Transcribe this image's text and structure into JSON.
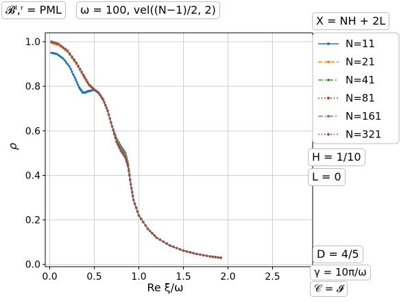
{
  "annotations": {
    "bc": "𝓑ˡ,ʳ = PML",
    "omega": "ω = 100, vel((N−1)/2, 2)",
    "X": "X = NH + 2L",
    "H": "H = 1/10",
    "L": "L = 0",
    "D": "D = 4/5",
    "gamma": "γ = 10π/ω",
    "C": "𝒞 = 𝓘"
  },
  "chart_data": {
    "type": "line",
    "xlabel": "Re ξ/ω",
    "ylabel": "ρ",
    "xlim": [
      -0.05,
      2.95
    ],
    "ylim": [
      -0.01,
      1.04
    ],
    "xticks": [
      "0.0",
      "0.5",
      "1.0",
      "1.5",
      "2.0",
      "2.5"
    ],
    "yticks": [
      "0.0",
      "0.2",
      "0.4",
      "0.6",
      "0.8",
      "1.0"
    ],
    "grid": true,
    "legend_position": "right-outside-top",
    "series": [
      {
        "name": "N=11",
        "color": "#1f77b4",
        "dash": "solid",
        "points": [
          [
            0.02,
            0.95
          ],
          [
            0.08,
            0.945
          ],
          [
            0.15,
            0.925
          ],
          [
            0.22,
            0.89
          ],
          [
            0.28,
            0.84
          ],
          [
            0.33,
            0.795
          ],
          [
            0.37,
            0.772
          ],
          [
            0.4,
            0.772
          ],
          [
            0.43,
            0.778
          ],
          [
            0.46,
            0.78
          ],
          [
            0.5,
            0.785
          ],
          [
            0.55,
            0.77
          ],
          [
            0.6,
            0.74
          ],
          [
            0.65,
            0.69
          ],
          [
            0.7,
            0.62
          ],
          [
            0.75,
            0.565
          ],
          [
            0.8,
            0.53
          ],
          [
            0.85,
            0.5
          ],
          [
            0.88,
            0.45
          ],
          [
            0.91,
            0.36
          ],
          [
            0.94,
            0.29
          ],
          [
            1.0,
            0.22
          ],
          [
            1.1,
            0.16
          ],
          [
            1.2,
            0.12
          ],
          [
            1.35,
            0.085
          ],
          [
            1.5,
            0.062
          ],
          [
            1.65,
            0.047
          ],
          [
            1.8,
            0.036
          ],
          [
            1.92,
            0.03
          ]
        ]
      },
      {
        "name": "N=21",
        "color": "#ff7f0e",
        "dash": "dashed",
        "points": [
          [
            0.02,
            0.995
          ],
          [
            0.1,
            0.985
          ],
          [
            0.2,
            0.955
          ],
          [
            0.3,
            0.9
          ],
          [
            0.38,
            0.845
          ],
          [
            0.44,
            0.805
          ],
          [
            0.5,
            0.785
          ],
          [
            0.55,
            0.77
          ],
          [
            0.6,
            0.74
          ],
          [
            0.65,
            0.69
          ],
          [
            0.7,
            0.62
          ],
          [
            0.75,
            0.56
          ],
          [
            0.8,
            0.52
          ],
          [
            0.85,
            0.49
          ],
          [
            0.88,
            0.445
          ],
          [
            0.91,
            0.36
          ],
          [
            0.94,
            0.29
          ],
          [
            1.0,
            0.22
          ],
          [
            1.1,
            0.16
          ],
          [
            1.2,
            0.12
          ],
          [
            1.35,
            0.085
          ],
          [
            1.5,
            0.062
          ],
          [
            1.65,
            0.047
          ],
          [
            1.8,
            0.036
          ],
          [
            1.92,
            0.03
          ]
        ]
      },
      {
        "name": "N=41",
        "color": "#2ca02c",
        "dash": "dashdot",
        "points": [
          [
            0.02,
            1.0
          ],
          [
            0.1,
            0.99
          ],
          [
            0.2,
            0.96
          ],
          [
            0.3,
            0.905
          ],
          [
            0.38,
            0.85
          ],
          [
            0.44,
            0.808
          ],
          [
            0.5,
            0.785
          ],
          [
            0.55,
            0.77
          ],
          [
            0.6,
            0.74
          ],
          [
            0.65,
            0.69
          ],
          [
            0.7,
            0.62
          ],
          [
            0.75,
            0.555
          ],
          [
            0.8,
            0.515
          ],
          [
            0.85,
            0.485
          ],
          [
            0.88,
            0.44
          ],
          [
            0.91,
            0.36
          ],
          [
            0.94,
            0.29
          ],
          [
            1.0,
            0.22
          ],
          [
            1.1,
            0.16
          ],
          [
            1.2,
            0.12
          ],
          [
            1.35,
            0.085
          ],
          [
            1.5,
            0.062
          ],
          [
            1.65,
            0.047
          ],
          [
            1.8,
            0.036
          ],
          [
            1.92,
            0.03
          ]
        ]
      },
      {
        "name": "N=81",
        "color": "#d62728",
        "dash": "dotted",
        "points": [
          [
            0.02,
            1.0
          ],
          [
            0.1,
            0.99
          ],
          [
            0.2,
            0.96
          ],
          [
            0.3,
            0.905
          ],
          [
            0.38,
            0.85
          ],
          [
            0.44,
            0.808
          ],
          [
            0.5,
            0.785
          ],
          [
            0.55,
            0.77
          ],
          [
            0.6,
            0.74
          ],
          [
            0.65,
            0.69
          ],
          [
            0.7,
            0.62
          ],
          [
            0.75,
            0.55
          ],
          [
            0.8,
            0.51
          ],
          [
            0.85,
            0.48
          ],
          [
            0.88,
            0.44
          ],
          [
            0.91,
            0.36
          ],
          [
            0.94,
            0.29
          ],
          [
            1.0,
            0.22
          ],
          [
            1.1,
            0.16
          ],
          [
            1.2,
            0.12
          ],
          [
            1.35,
            0.085
          ],
          [
            1.5,
            0.062
          ],
          [
            1.65,
            0.047
          ],
          [
            1.8,
            0.036
          ],
          [
            1.92,
            0.03
          ]
        ]
      },
      {
        "name": "N=161",
        "color": "#9467bd",
        "dash": "dashdot",
        "points": [
          [
            0.02,
            1.0
          ],
          [
            0.1,
            0.99
          ],
          [
            0.2,
            0.96
          ],
          [
            0.3,
            0.905
          ],
          [
            0.38,
            0.85
          ],
          [
            0.44,
            0.808
          ],
          [
            0.5,
            0.785
          ],
          [
            0.55,
            0.77
          ],
          [
            0.6,
            0.74
          ],
          [
            0.65,
            0.69
          ],
          [
            0.7,
            0.62
          ],
          [
            0.75,
            0.55
          ],
          [
            0.8,
            0.51
          ],
          [
            0.85,
            0.48
          ],
          [
            0.88,
            0.44
          ],
          [
            0.91,
            0.36
          ],
          [
            0.94,
            0.29
          ],
          [
            1.0,
            0.22
          ],
          [
            1.1,
            0.16
          ],
          [
            1.2,
            0.12
          ],
          [
            1.35,
            0.085
          ],
          [
            1.5,
            0.062
          ],
          [
            1.65,
            0.047
          ],
          [
            1.8,
            0.036
          ],
          [
            1.92,
            0.03
          ]
        ]
      },
      {
        "name": "N=321",
        "color": "#8c564b",
        "dash": "dotted",
        "points": [
          [
            0.02,
            1.0
          ],
          [
            0.1,
            0.99
          ],
          [
            0.2,
            0.96
          ],
          [
            0.3,
            0.905
          ],
          [
            0.38,
            0.85
          ],
          [
            0.44,
            0.808
          ],
          [
            0.5,
            0.785
          ],
          [
            0.55,
            0.77
          ],
          [
            0.6,
            0.74
          ],
          [
            0.65,
            0.69
          ],
          [
            0.7,
            0.62
          ],
          [
            0.75,
            0.55
          ],
          [
            0.8,
            0.51
          ],
          [
            0.85,
            0.48
          ],
          [
            0.88,
            0.44
          ],
          [
            0.91,
            0.36
          ],
          [
            0.94,
            0.29
          ],
          [
            1.0,
            0.22
          ],
          [
            1.1,
            0.16
          ],
          [
            1.2,
            0.12
          ],
          [
            1.35,
            0.085
          ],
          [
            1.5,
            0.062
          ],
          [
            1.65,
            0.047
          ],
          [
            1.8,
            0.036
          ],
          [
            1.92,
            0.03
          ]
        ]
      }
    ]
  }
}
